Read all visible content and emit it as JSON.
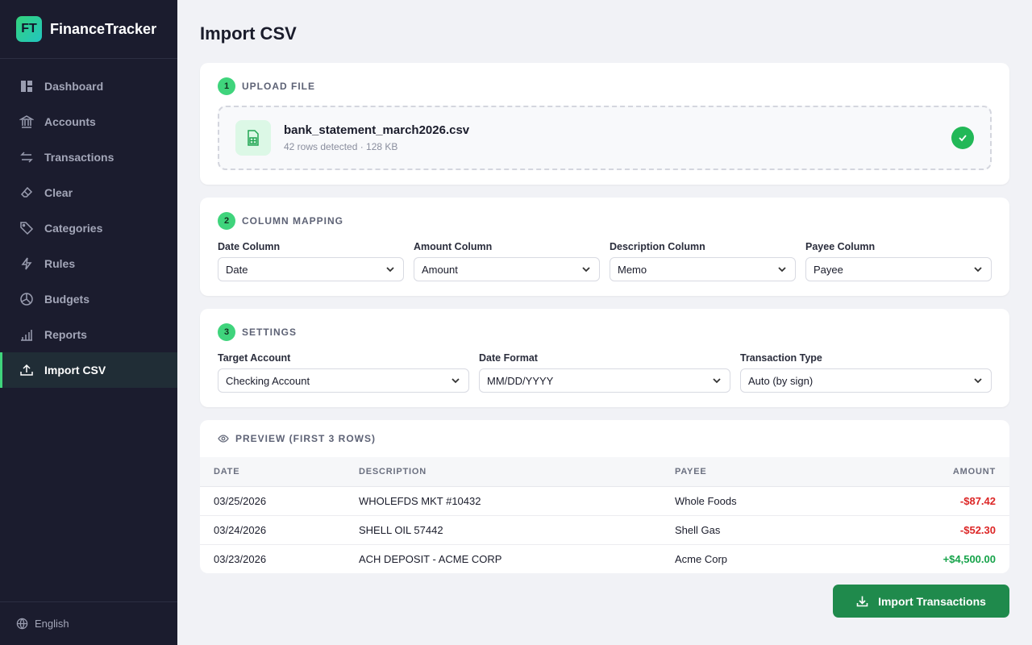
{
  "app": {
    "logo": "FT",
    "name": "FinanceTracker"
  },
  "nav": [
    {
      "label": "Dashboard",
      "icon": "dashboard-icon"
    },
    {
      "label": "Accounts",
      "icon": "bank-icon"
    },
    {
      "label": "Transactions",
      "icon": "arrows-icon"
    },
    {
      "label": "Clear",
      "icon": "eraser-icon"
    },
    {
      "label": "Categories",
      "icon": "tag-icon"
    },
    {
      "label": "Rules",
      "icon": "bolt-icon"
    },
    {
      "label": "Budgets",
      "icon": "pie-icon"
    },
    {
      "label": "Reports",
      "icon": "bar-chart-icon"
    },
    {
      "label": "Import CSV",
      "icon": "upload-icon",
      "active": true
    }
  ],
  "language": "English",
  "page_title": "Import CSV",
  "upload": {
    "step": "1",
    "title": "UPLOAD FILE",
    "file_name": "bank_statement_march2026.csv",
    "file_meta": "42 rows detected · 128 KB"
  },
  "mapping": {
    "step": "2",
    "title": "COLUMN MAPPING",
    "fields": [
      {
        "label": "Date Column",
        "value": "Date"
      },
      {
        "label": "Amount Column",
        "value": "Amount"
      },
      {
        "label": "Description Column",
        "value": "Memo"
      },
      {
        "label": "Payee Column",
        "value": "Payee"
      }
    ]
  },
  "settings": {
    "step": "3",
    "title": "SETTINGS",
    "fields": [
      {
        "label": "Target Account",
        "value": "Checking Account"
      },
      {
        "label": "Date Format",
        "value": "MM/DD/YYYY"
      },
      {
        "label": "Transaction Type",
        "value": "Auto (by sign)"
      }
    ]
  },
  "preview": {
    "title": "PREVIEW (FIRST 3 ROWS)",
    "columns": [
      "DATE",
      "DESCRIPTION",
      "PAYEE",
      "AMOUNT"
    ],
    "rows": [
      [
        "03/25/2026",
        "WHOLEFDS MKT #10432",
        "Whole Foods",
        "-$87.42"
      ],
      [
        "03/24/2026",
        "SHELL OIL 57442",
        "Shell Gas",
        "-$52.30"
      ],
      [
        "03/23/2026",
        "ACH DEPOSIT - ACME CORP",
        "Acme Corp",
        "+$4,500.00"
      ]
    ]
  },
  "import_button": "Import Transactions",
  "colors": {
    "accent": "#3fd47c",
    "button": "#1f8a4c",
    "negative": "#dc2626",
    "positive": "#16a34a"
  }
}
